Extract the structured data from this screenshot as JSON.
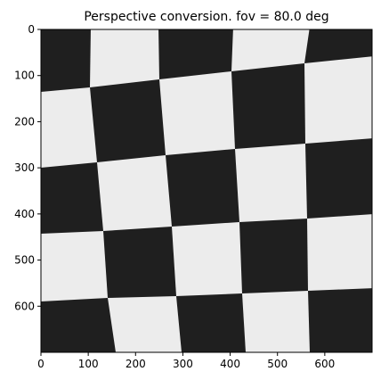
{
  "figure": {
    "title": "Perspective conversion. fov = 80.0 deg",
    "x_ticks": [
      "0",
      "100",
      "200",
      "300",
      "400",
      "500",
      "600"
    ],
    "y_ticks": [
      "0",
      "100",
      "200",
      "300",
      "400",
      "500",
      "600"
    ]
  },
  "image": {
    "content": "grayscale checkerboard warped by perspective conversion",
    "dark_color": "#1f1f1f",
    "light_color": "#ececec",
    "pixel_size": [
      700,
      700
    ]
  }
}
